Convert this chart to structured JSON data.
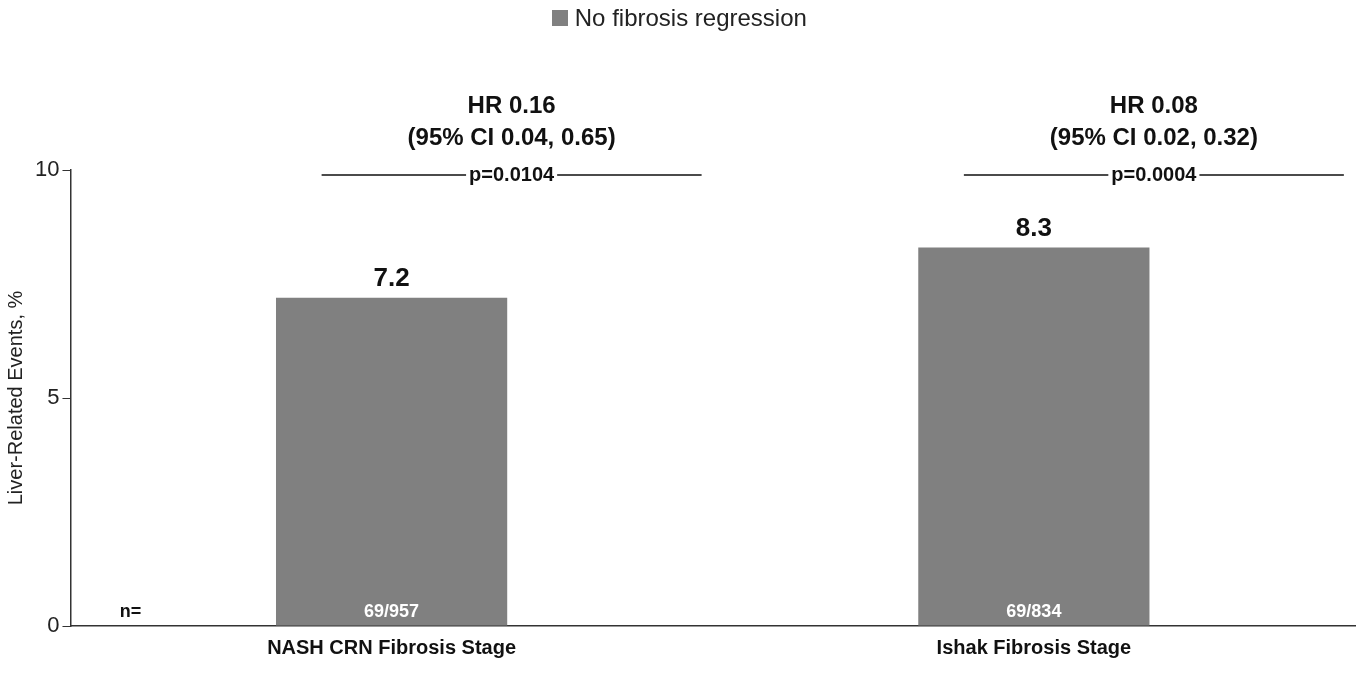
{
  "chart_data": {
    "type": "bar",
    "ylabel": "Liver-Related Events, %",
    "categories": [
      "NASH CRN Fibrosis Stage",
      "Ishak Fibrosis Stage"
    ],
    "series": [
      {
        "name": "No fibrosis regression",
        "color": "#808080",
        "values": [
          7.2,
          8.3
        ]
      }
    ],
    "ylim": [
      0,
      10
    ],
    "yticks": [
      0,
      5,
      10
    ],
    "data_labels": true,
    "legend": "top",
    "grid": false,
    "annotations": [
      "HR 0.16",
      "(95% CI 0.04, 0.65)",
      "p=0.0104",
      "HR 0.08",
      "(95% CI 0.02, 0.32)",
      "p=0.0004",
      "69/957",
      "69/834",
      "n="
    ]
  }
}
